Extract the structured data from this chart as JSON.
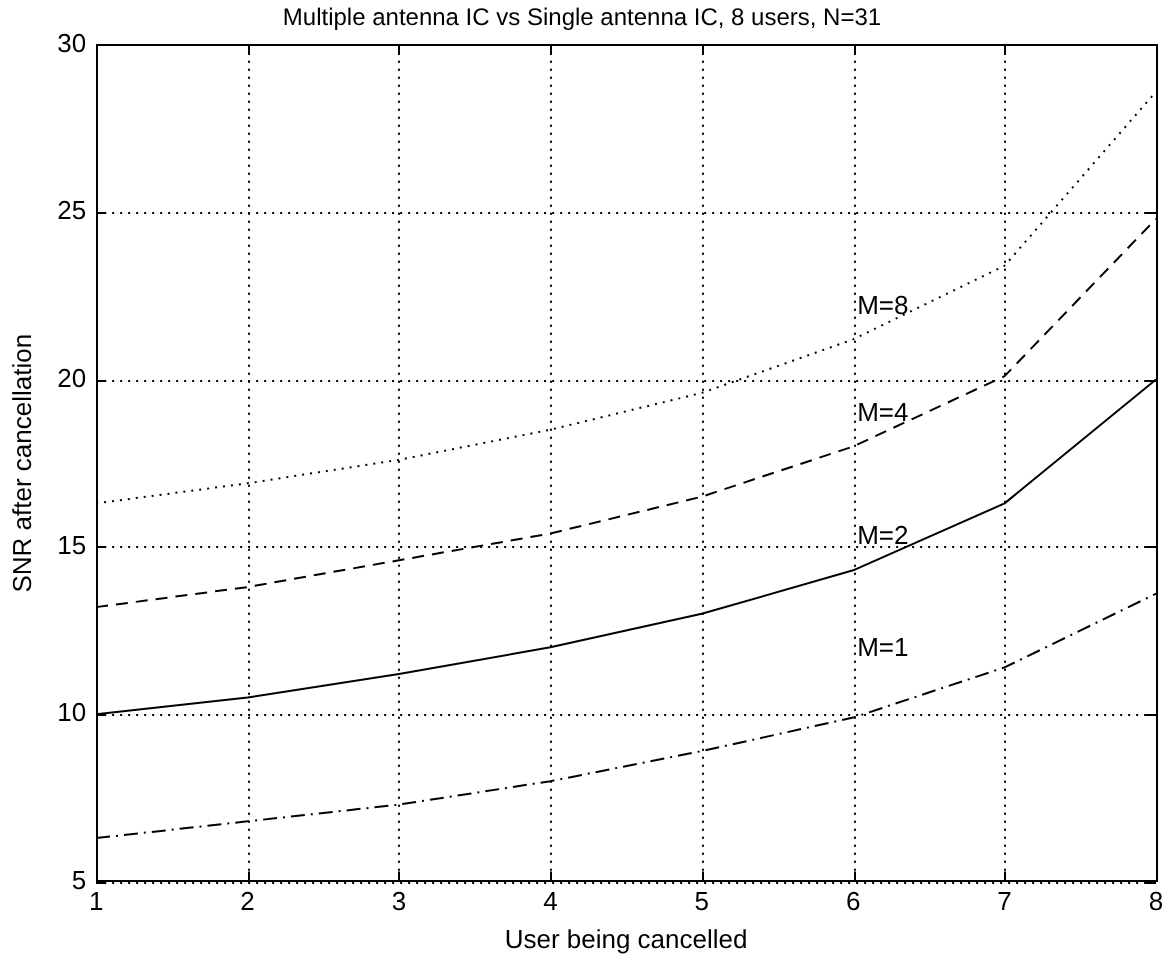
{
  "chart_data": {
    "type": "line",
    "title": "Multiple antenna IC vs Single antenna IC, 8 users, N=31",
    "xlabel": "User being cancelled",
    "ylabel": "SNR after cancellation",
    "x": [
      1,
      2,
      3,
      4,
      5,
      6,
      7,
      8
    ],
    "series": [
      {
        "name": "M=8",
        "color": "#000000",
        "line_style": "dotted",
        "values": [
          16.3,
          16.9,
          17.6,
          18.5,
          19.6,
          21.2,
          23.4,
          28.6
        ]
      },
      {
        "name": "M=4",
        "color": "#000000",
        "line_style": "dashed",
        "values": [
          13.2,
          13.8,
          14.6,
          15.4,
          16.5,
          18.0,
          20.1,
          24.8
        ]
      },
      {
        "name": "M=2",
        "color": "#000000",
        "line_style": "solid",
        "values": [
          10.0,
          10.5,
          11.2,
          12.0,
          13.0,
          14.3,
          16.3,
          20.0
        ]
      },
      {
        "name": "M=1",
        "color": "#000000",
        "line_style": "dashdot",
        "values": [
          6.3,
          6.8,
          7.3,
          8.0,
          8.9,
          9.9,
          11.4,
          13.6
        ]
      }
    ],
    "xlim": [
      1,
      8
    ],
    "xticks": [
      1,
      2,
      3,
      4,
      5,
      6,
      7,
      8
    ],
    "ylim": [
      5,
      30
    ],
    "yticks": [
      5,
      10,
      15,
      20,
      25,
      30
    ],
    "grid": true,
    "legend": false,
    "marker": "none"
  }
}
